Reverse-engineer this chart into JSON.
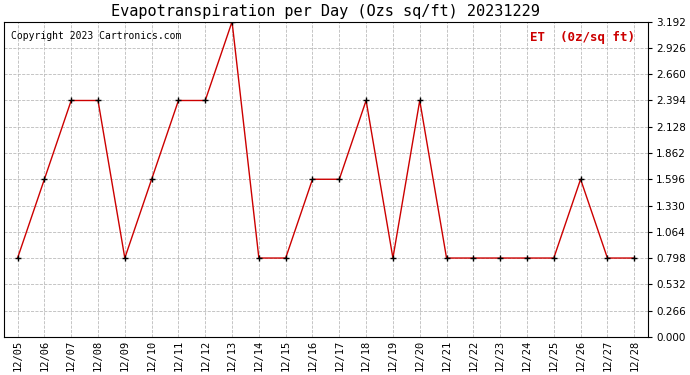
{
  "title": "Evapotranspiration per Day (Ozs sq/ft) 20231229",
  "copyright": "Copyright 2023 Cartronics.com",
  "legend_label": "ET  (0z/sq ft)",
  "dates": [
    "12/05",
    "12/06",
    "12/07",
    "12/08",
    "12/09",
    "12/10",
    "12/11",
    "12/12",
    "12/13",
    "12/14",
    "12/15",
    "12/16",
    "12/17",
    "12/18",
    "12/19",
    "12/20",
    "12/21",
    "12/22",
    "12/23",
    "12/24",
    "12/25",
    "12/26",
    "12/27",
    "12/28"
  ],
  "values": [
    0.798,
    1.596,
    2.394,
    2.394,
    0.798,
    1.596,
    2.394,
    2.394,
    3.192,
    0.798,
    0.798,
    1.596,
    1.596,
    2.394,
    0.798,
    2.394,
    0.798,
    0.798,
    0.798,
    0.798,
    0.798,
    1.596,
    0.798,
    0.798
  ],
  "line_color": "#cc0000",
  "marker_color": "#000000",
  "background_color": "#ffffff",
  "grid_color": "#bbbbbb",
  "ylim": [
    0.0,
    3.192
  ],
  "yticks": [
    0.0,
    0.266,
    0.532,
    0.798,
    1.064,
    1.33,
    1.596,
    1.862,
    2.128,
    2.394,
    2.66,
    2.926,
    3.192
  ],
  "title_fontsize": 11,
  "copyright_fontsize": 7,
  "legend_fontsize": 9,
  "tick_fontsize": 7.5,
  "legend_color": "#cc0000"
}
